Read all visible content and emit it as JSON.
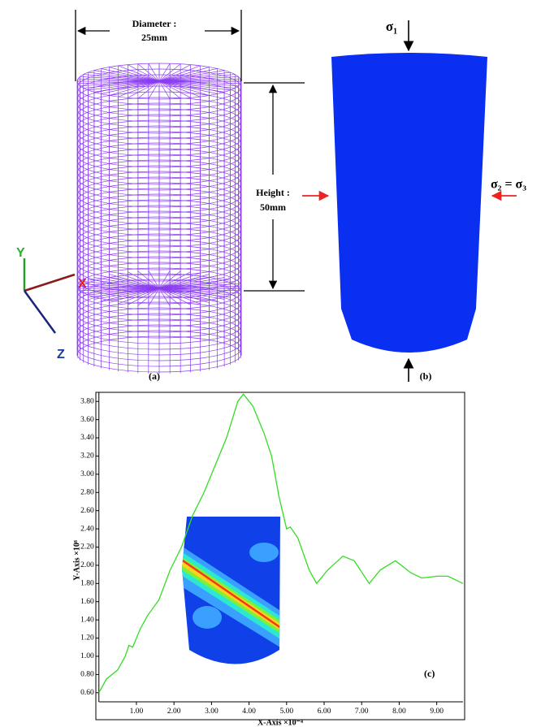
{
  "panels": {
    "a": {
      "diameter_label": "Diameter :",
      "diameter_value": "25mm",
      "height_label": "Height :",
      "height_value": "50mm",
      "axis_y": "Y",
      "axis_x": "X",
      "axis_z": "Z",
      "caption": "(a)"
    },
    "b": {
      "sigma1": "σ₁",
      "sigma23": "σ₂ = σ₃",
      "caption": "(b)"
    }
  },
  "chart_data": {
    "type": "line",
    "caption": "(c)",
    "x_label": "X-Axis ×10⁻⁴",
    "y_label": "Y-Axis ×10⁸",
    "color": "#33dd22",
    "x": [
      0,
      0.2,
      0.5,
      0.7,
      0.8,
      0.9,
      1.1,
      1.3,
      1.6,
      1.9,
      2.2,
      2.5,
      2.8,
      3.1,
      3.4,
      3.7,
      3.85,
      4.1,
      4.4,
      4.6,
      4.8,
      5.0,
      5.1,
      5.3,
      5.6,
      5.8,
      6.1,
      6.5,
      6.8,
      7.2,
      7.5,
      7.9,
      8.3,
      8.6,
      9.0,
      9.3,
      9.7
    ],
    "values": [
      0.6,
      0.75,
      0.85,
      1.0,
      1.12,
      1.1,
      1.3,
      1.45,
      1.62,
      1.95,
      2.2,
      2.55,
      2.8,
      3.1,
      3.4,
      3.8,
      3.88,
      3.75,
      3.45,
      3.2,
      2.75,
      2.4,
      2.42,
      2.3,
      1.95,
      1.8,
      1.95,
      2.1,
      2.05,
      1.8,
      1.95,
      2.05,
      1.92,
      1.86,
      1.88,
      1.88,
      1.8
    ],
    "xlim": [
      0,
      9.7
    ],
    "ylim": [
      0.5,
      3.9
    ],
    "xticks": [
      {
        "value": 1,
        "label": "1.00"
      },
      {
        "value": 2,
        "label": "2.00"
      },
      {
        "value": 3,
        "label": "3.00"
      },
      {
        "value": 4,
        "label": "4.00"
      },
      {
        "value": 5,
        "label": "5.00"
      },
      {
        "value": 6,
        "label": "6.00"
      },
      {
        "value": 7,
        "label": "7.00"
      },
      {
        "value": 8,
        "label": "8.00"
      },
      {
        "value": 9,
        "label": "9.00"
      }
    ],
    "yticks": [
      {
        "value": 0.6,
        "label": "0.60"
      },
      {
        "value": 0.8,
        "label": "0.80"
      },
      {
        "value": 1,
        "label": "1.00"
      },
      {
        "value": 1.2,
        "label": "1.20"
      },
      {
        "value": 1.4,
        "label": "1.40"
      },
      {
        "value": 1.6,
        "label": "1.60"
      },
      {
        "value": 1.8,
        "label": "1.80"
      },
      {
        "value": 2,
        "label": "2.00"
      },
      {
        "value": 2.2,
        "label": "2.20"
      },
      {
        "value": 2.4,
        "label": "2.40"
      },
      {
        "value": 2.6,
        "label": "2.60"
      },
      {
        "value": 2.8,
        "label": "2.80"
      },
      {
        "value": 3,
        "label": "3.00"
      },
      {
        "value": 3.2,
        "label": "3.20"
      },
      {
        "value": 3.4,
        "label": "3.40"
      },
      {
        "value": 3.6,
        "label": "3.60"
      },
      {
        "value": 3.8,
        "label": "3.80"
      }
    ]
  }
}
